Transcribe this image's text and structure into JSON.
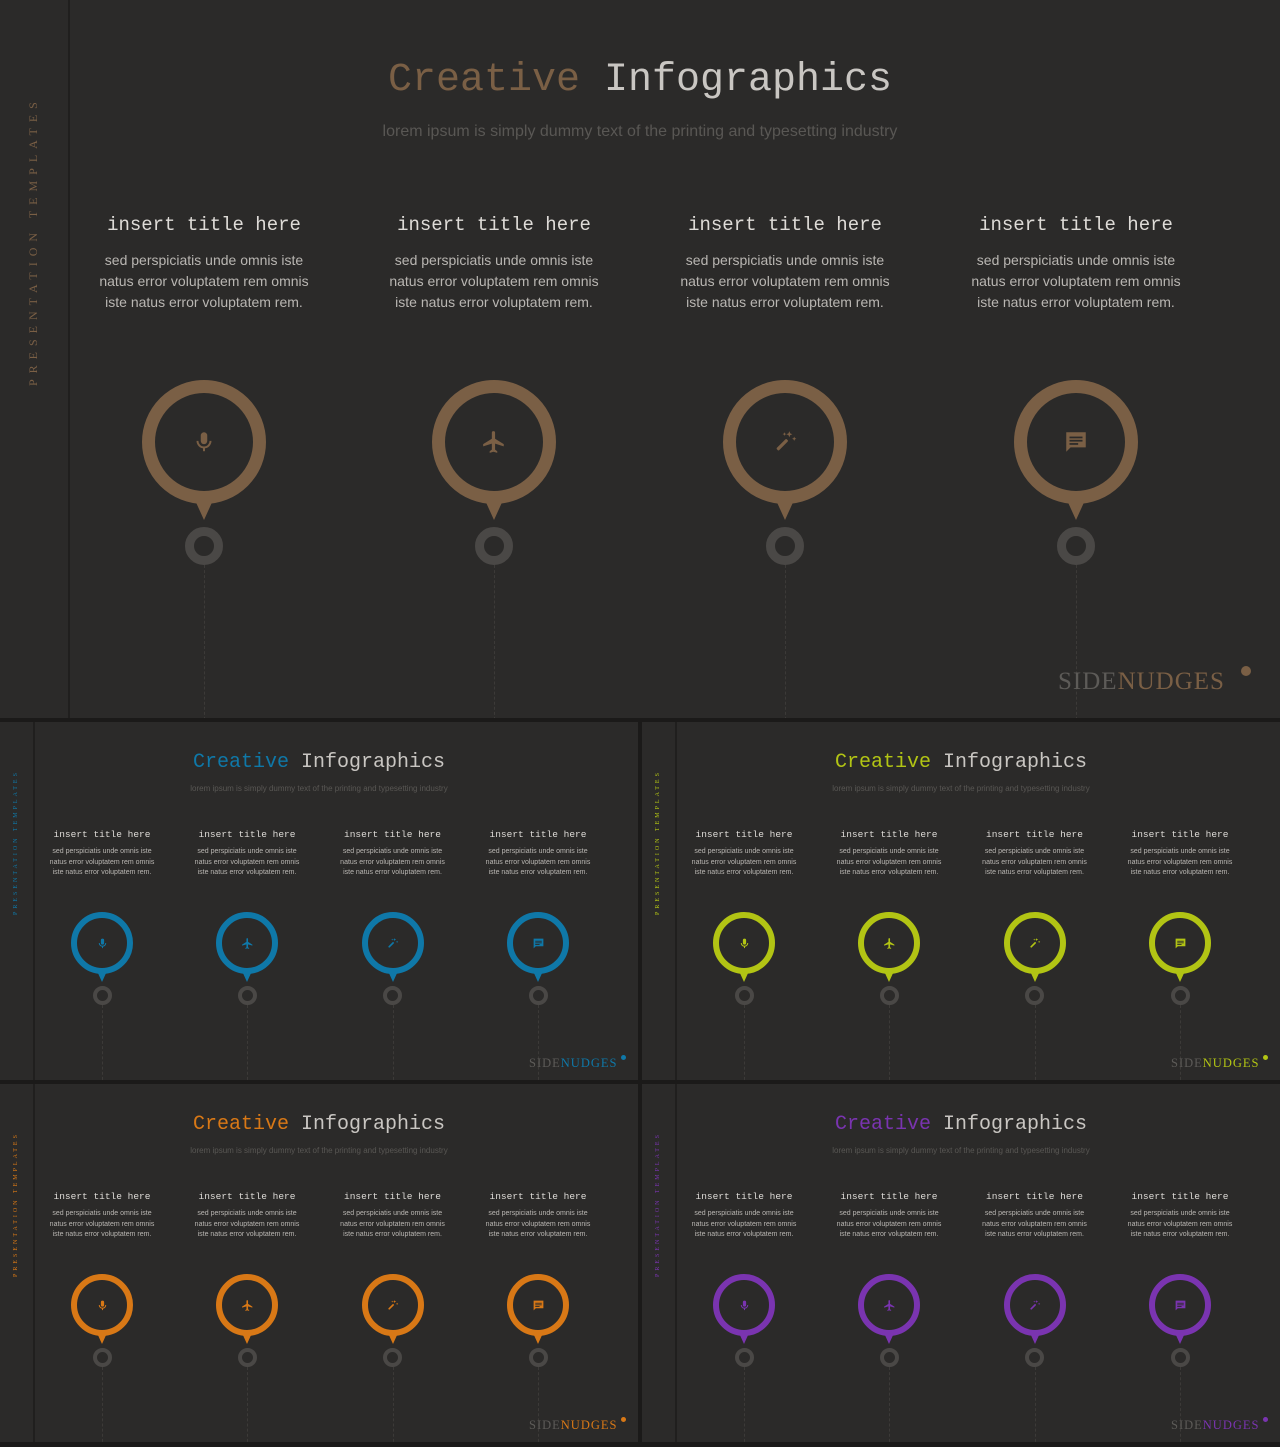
{
  "slides": [
    {
      "id": "brown-large",
      "accent": "#7a5f45",
      "title_word1": "Creative",
      "title_word2": "Infographics",
      "subtitle": "lorem ipsum is simply dummy text of the printing and typesetting industry",
      "side_label": "PRESENTATION TEMPLATES",
      "brand_1": "SIDE",
      "brand_2": "NUDGES"
    },
    {
      "id": "blue",
      "accent": "#0f78a8",
      "title_word1": "Creative",
      "title_word2": "Infographics",
      "subtitle": "lorem ipsum is simply dummy text of the printing and typesetting industry",
      "side_label": "PRESENTATION TEMPLATES",
      "brand_1": "SIDE",
      "brand_2": "NUDGES"
    },
    {
      "id": "lime",
      "accent": "#b2c414",
      "title_word1": "Creative",
      "title_word2": "Infographics",
      "subtitle": "lorem ipsum is simply dummy text of the printing and typesetting industry",
      "side_label": "PRESENTATION TEMPLATES",
      "brand_1": "SIDE",
      "brand_2": "NUDGES"
    },
    {
      "id": "orange",
      "accent": "#d87816",
      "title_word1": "Creative",
      "title_word2": "Infographics",
      "subtitle": "lorem ipsum is simply dummy text of the printing and typesetting industry",
      "side_label": "PRESENTATION TEMPLATES",
      "brand_1": "SIDE",
      "brand_2": "NUDGES"
    },
    {
      "id": "purple",
      "accent": "#7a34b0",
      "title_word1": "Creative",
      "title_word2": "Infographics",
      "subtitle": "lorem ipsum is simply dummy text of the printing and typesetting industry",
      "side_label": "PRESENTATION TEMPLATES",
      "brand_1": "SIDE",
      "brand_2": "NUDGES"
    }
  ],
  "columns": [
    {
      "title": "insert title here",
      "body": "sed perspiciatis unde omnis iste natus error voluptatem rem omnis iste natus error voluptatem rem.",
      "icon": "microphone-icon"
    },
    {
      "title": "insert title here",
      "body": "sed perspiciatis unde omnis iste natus error voluptatem rem omnis iste natus error voluptatem rem.",
      "icon": "airplane-icon"
    },
    {
      "title": "insert title here",
      "body": "sed perspiciatis unde omnis iste natus error voluptatem rem omnis iste natus error voluptatem rem.",
      "icon": "magic-wand-icon"
    },
    {
      "title": "insert title here",
      "body": "sed perspiciatis unde omnis iste natus error voluptatem rem omnis iste natus error voluptatem rem.",
      "icon": "chat-icon"
    }
  ]
}
